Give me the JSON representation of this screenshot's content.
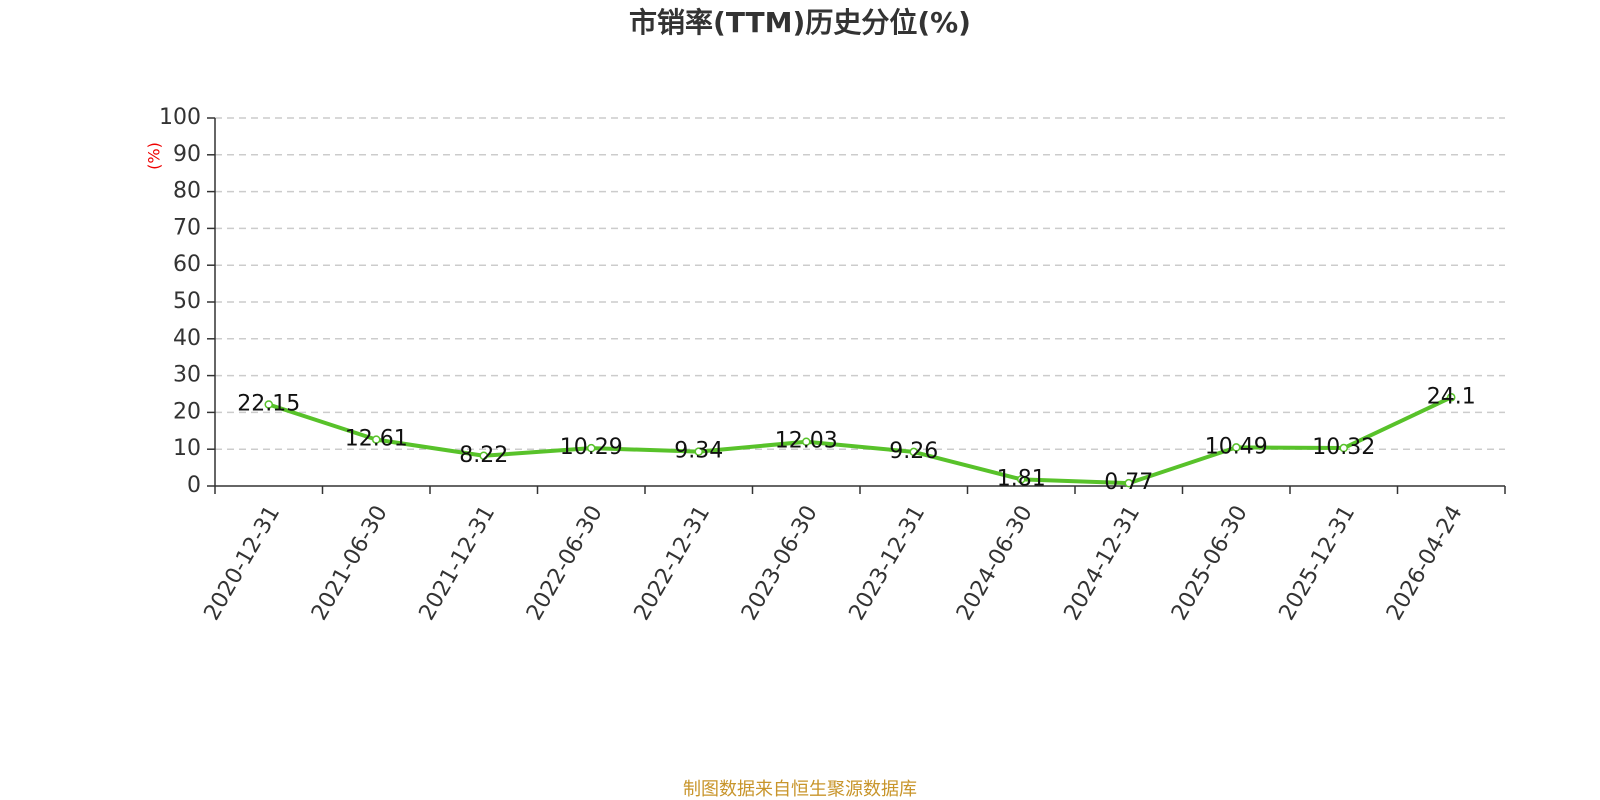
{
  "chart_data": {
    "type": "line",
    "title": "市销率(TTM)历史分位(%)",
    "y_label": "(%)",
    "categories": [
      "2020-12-31",
      "2021-06-30",
      "2021-12-31",
      "2022-06-30",
      "2022-12-31",
      "2023-06-30",
      "2023-12-31",
      "2024-06-30",
      "2024-12-31",
      "2025-06-30",
      "2025-12-31",
      "2026-04-24"
    ],
    "values": [
      22.15,
      12.61,
      8.22,
      10.29,
      9.34,
      12.03,
      9.26,
      1.81,
      0.77,
      10.49,
      10.32,
      24.1
    ],
    "color": "#58c22a",
    "ylim": [
      0,
      100
    ],
    "yticks": [
      0,
      10,
      20,
      30,
      40,
      50,
      60,
      70,
      80,
      90,
      100
    ],
    "grid": true,
    "source": "制图数据来自恒生聚源数据库"
  }
}
